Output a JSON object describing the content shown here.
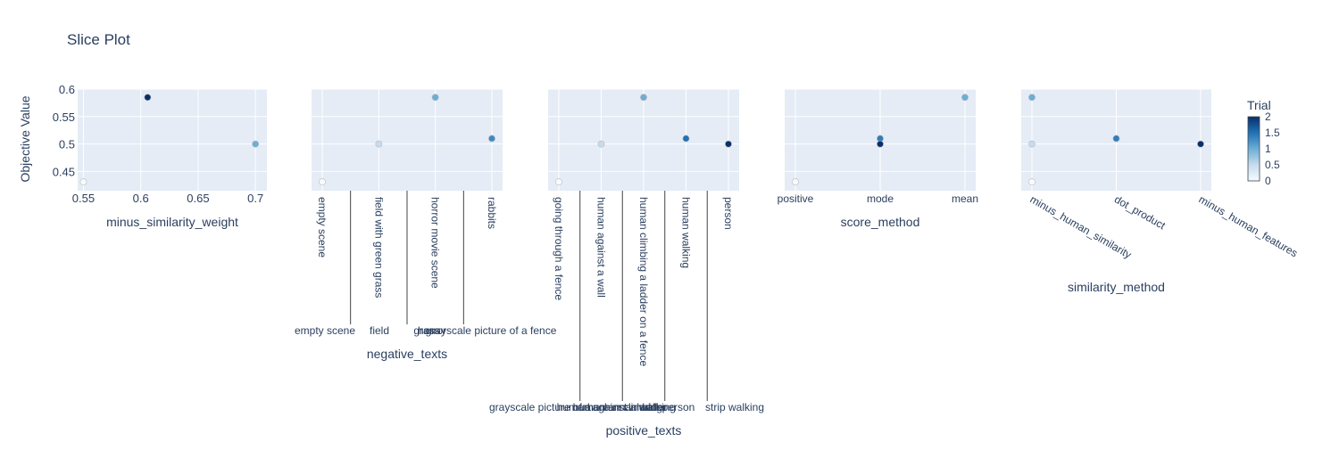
{
  "chart_data": {
    "type": "scatter",
    "title": "Slice Plot",
    "ylabel": "Objective Value",
    "ylim": [
      0.415,
      0.6
    ],
    "y_ticks": [
      "0.6",
      "0.55",
      "0.5",
      "0.45"
    ],
    "y_tick_values": [
      0.6,
      0.55,
      0.5,
      0.45
    ],
    "grid": true,
    "colorscale": {
      "title": "Trial",
      "ticks": [
        "2",
        "1.5",
        "1",
        "0.5",
        "0"
      ],
      "tick_values": [
        2,
        1.5,
        1,
        0.5,
        0
      ],
      "range": [
        0,
        2
      ],
      "colors": [
        "#f7fbff",
        "#c6dbef",
        "#6baed6",
        "#2171b5",
        "#08306b"
      ]
    },
    "panels": [
      {
        "xlabel": "minus_similarity_weight",
        "x_type": "numeric",
        "xlim": [
          0.545,
          0.71
        ],
        "x_ticks": [
          "0.55",
          "0.6",
          "0.65",
          "0.7"
        ],
        "x_tick_values": [
          0.55,
          0.6,
          0.65,
          0.7
        ],
        "points": [
          {
            "x": 0.55,
            "y": 0.431,
            "trial": 0
          },
          {
            "x": 0.606,
            "y": 0.585,
            "trial": 2
          },
          {
            "x": 0.7,
            "y": 0.5,
            "trial": 1
          }
        ]
      },
      {
        "xlabel": "negative_texts",
        "x_type": "category",
        "categories": [
          "empty scene",
          "field with green grass",
          "horror movie scene",
          "rabbits"
        ],
        "group_labels": [
          "empty scene",
          "field",
          "grass",
          "grayscale picture of a fence",
          "horror"
        ],
        "points": [
          {
            "x": "empty scene",
            "y": 0.431,
            "trial": 0
          },
          {
            "x": "field with green grass",
            "y": 0.5,
            "trial": 0.5
          },
          {
            "x": "horror movie scene",
            "y": 0.585,
            "trial": 1
          },
          {
            "x": "rabbits",
            "y": 0.51,
            "trial": 1.3
          }
        ]
      },
      {
        "xlabel": "positive_texts",
        "x_type": "category",
        "categories": [
          "going through a fence",
          "human against a wall",
          "human climbing a ladder on a fence",
          "human walking",
          "person"
        ],
        "group_labels": [
          "grayscale picture of a",
          "human",
          "human against a wall",
          "human climbing",
          "human walking",
          "ladder",
          "person",
          "strip walking"
        ],
        "points": [
          {
            "x": "going through a fence",
            "y": 0.431,
            "trial": 0
          },
          {
            "x": "human against a wall",
            "y": 0.5,
            "trial": 0.5
          },
          {
            "x": "human climbing a ladder on a fence",
            "y": 0.585,
            "trial": 1
          },
          {
            "x": "human walking",
            "y": 0.51,
            "trial": 1.5
          },
          {
            "x": "person",
            "y": 0.5,
            "trial": 2
          }
        ]
      },
      {
        "xlabel": "score_method",
        "x_type": "category",
        "categories": [
          "positive",
          "mode",
          "mean"
        ],
        "points": [
          {
            "x": "positive",
            "y": 0.431,
            "trial": 0
          },
          {
            "x": "mode",
            "y": 0.51,
            "trial": 1.4
          },
          {
            "x": "mode",
            "y": 0.5,
            "trial": 2
          },
          {
            "x": "mean",
            "y": 0.585,
            "trial": 1
          }
        ]
      },
      {
        "xlabel": "similarity_method",
        "x_type": "category",
        "categories": [
          "minus_human_similarity",
          "dot_product",
          "minus_human_features"
        ],
        "points": [
          {
            "x": "minus_human_similarity",
            "y": 0.431,
            "trial": 0
          },
          {
            "x": "minus_human_similarity",
            "y": 0.5,
            "trial": 0.5
          },
          {
            "x": "minus_human_similarity",
            "y": 0.585,
            "trial": 1
          },
          {
            "x": "dot_product",
            "y": 0.51,
            "trial": 1.4
          },
          {
            "x": "minus_human_features",
            "y": 0.5,
            "trial": 2
          }
        ]
      }
    ]
  }
}
